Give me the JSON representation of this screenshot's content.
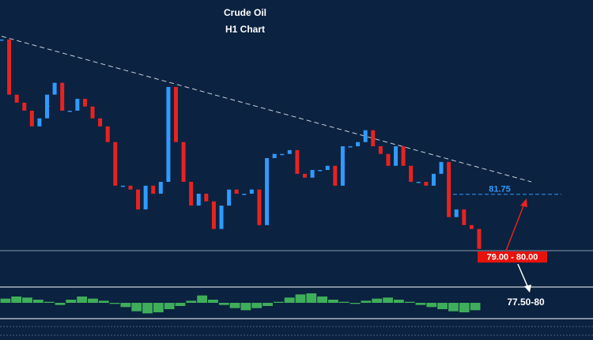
{
  "chart_data": [
    {
      "type": "candlestick",
      "title": "Crude Oil",
      "subtitle": "H1 Chart",
      "values": [
        86.58,
        84.86,
        84.61,
        84.36,
        83.87,
        84.12,
        84.86,
        85.23,
        84.36,
        84.36,
        84.73,
        84.49,
        84.12,
        83.87,
        83.38,
        82.02,
        82.02,
        81.9,
        81.28,
        82.02,
        81.77,
        82.14,
        85.1,
        83.38,
        82.14,
        81.4,
        81.77,
        81.53,
        80.67,
        81.4,
        81.9,
        81.77,
        81.77,
        81.9,
        80.79,
        82.88,
        83.01,
        83.01,
        83.13,
        82.39,
        82.27,
        82.51,
        82.51,
        82.64,
        82.02,
        83.25,
        83.25,
        83.38,
        83.75,
        83.25,
        83.01,
        82.64,
        83.25,
        82.64,
        82.14,
        82.14,
        82.02,
        82.39,
        82.76,
        81.04,
        81.28,
        80.79,
        80.67,
        80.05
      ],
      "up_color": "#2f9bff",
      "down_color": "#e8231f",
      "ylim": [
        79.5,
        86.9
      ],
      "trendline": [
        86.68,
        82.14
      ],
      "resistance": 81.75,
      "support_label": "79.00 - 80.00",
      "target_label": "77.50-80"
    },
    {
      "type": "bar",
      "values": [
        0.4,
        0.6,
        0.5,
        0.3,
        0.1,
        -0.2,
        0.3,
        0.6,
        0.4,
        0.2,
        -0.1,
        -0.4,
        -0.8,
        -1,
        -0.9,
        -0.6,
        -0.3,
        0.2,
        0.7,
        0.3,
        -0.2,
        -0.5,
        -0.7,
        -0.5,
        -0.3,
        0.1,
        0.5,
        0.8,
        0.9,
        0.6,
        0.3,
        0.1,
        -0.1,
        0.2,
        0.4,
        0.5,
        0.3,
        0.1,
        -0.2,
        -0.4,
        -0.6,
        -0.8,
        -0.9,
        -0.7
      ],
      "color": "#3fae5a",
      "ylim": [
        -1.2,
        1.2
      ]
    }
  ]
}
